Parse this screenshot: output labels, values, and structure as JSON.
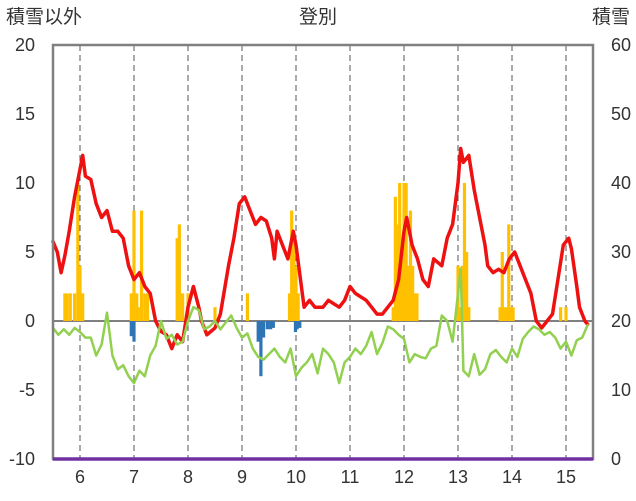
{
  "chart_data": {
    "type": "bar+line",
    "title": "登別",
    "ylabel_left": "積雪以外",
    "ylabel_right": "積雪",
    "ylim_left": [
      -10,
      20
    ],
    "ylim_right": [
      0,
      60
    ],
    "yticks_left": [
      20,
      15,
      10,
      5,
      0,
      -5,
      -10
    ],
    "yticks_right": [
      60,
      50,
      40,
      30,
      20,
      10,
      0
    ],
    "x_range": [
      5.5,
      15.5
    ],
    "xticks": [
      6,
      7,
      8,
      9,
      10,
      11,
      12,
      13,
      14,
      15
    ],
    "grid": "vertical dashed at each year",
    "colors": {
      "red_line": "#ee1111",
      "green_line": "#92d050",
      "orange_bars": "#ffc000",
      "blue_bars": "#2e75b6",
      "bottom_band": "#7030a0",
      "frame": "#808080"
    },
    "series": [
      {
        "axis": "right",
        "kind": "line",
        "color": "red",
        "points": [
          [
            5.5,
            31.5
          ],
          [
            5.58,
            30
          ],
          [
            5.65,
            27
          ],
          [
            5.72,
            29.5
          ],
          [
            5.8,
            33
          ],
          [
            5.9,
            38
          ],
          [
            6.0,
            42
          ],
          [
            6.05,
            44
          ],
          [
            6.1,
            41
          ],
          [
            6.2,
            40.5
          ],
          [
            6.3,
            37
          ],
          [
            6.4,
            35
          ],
          [
            6.5,
            36
          ],
          [
            6.6,
            33
          ],
          [
            6.7,
            33
          ],
          [
            6.8,
            32
          ],
          [
            6.9,
            28
          ],
          [
            7.0,
            26
          ],
          [
            7.1,
            27
          ],
          [
            7.2,
            25
          ],
          [
            7.3,
            24
          ],
          [
            7.4,
            20
          ],
          [
            7.5,
            18.5
          ],
          [
            7.6,
            18
          ],
          [
            7.7,
            16
          ],
          [
            7.8,
            18
          ],
          [
            7.9,
            17
          ],
          [
            8.0,
            22
          ],
          [
            8.1,
            25
          ],
          [
            8.2,
            22
          ],
          [
            8.25,
            20
          ],
          [
            8.35,
            18
          ],
          [
            8.5,
            19
          ],
          [
            8.6,
            21
          ],
          [
            8.75,
            28
          ],
          [
            8.85,
            32
          ],
          [
            8.95,
            37
          ],
          [
            9.05,
            38
          ],
          [
            9.15,
            36
          ],
          [
            9.25,
            34
          ],
          [
            9.35,
            35
          ],
          [
            9.45,
            34.5
          ],
          [
            9.55,
            32
          ],
          [
            9.6,
            29
          ],
          [
            9.65,
            33
          ],
          [
            9.75,
            31
          ],
          [
            9.85,
            29
          ],
          [
            9.95,
            33
          ],
          [
            10.0,
            31
          ],
          [
            10.05,
            28
          ],
          [
            10.15,
            22
          ],
          [
            10.25,
            23
          ],
          [
            10.35,
            22
          ],
          [
            10.5,
            22
          ],
          [
            10.6,
            23
          ],
          [
            10.7,
            22.5
          ],
          [
            10.8,
            22
          ],
          [
            10.9,
            23
          ],
          [
            11.0,
            25
          ],
          [
            11.1,
            24
          ],
          [
            11.2,
            23.5
          ],
          [
            11.3,
            23
          ],
          [
            11.4,
            22
          ],
          [
            11.5,
            21
          ],
          [
            11.6,
            21
          ],
          [
            11.7,
            22
          ],
          [
            11.8,
            23
          ],
          [
            11.9,
            26
          ],
          [
            12.0,
            33
          ],
          [
            12.05,
            35
          ],
          [
            12.15,
            31
          ],
          [
            12.25,
            29
          ],
          [
            12.35,
            26
          ],
          [
            12.45,
            25
          ],
          [
            12.55,
            29
          ],
          [
            12.7,
            28
          ],
          [
            12.8,
            32
          ],
          [
            12.9,
            34
          ],
          [
            13.0,
            40
          ],
          [
            13.05,
            45
          ],
          [
            13.1,
            43
          ],
          [
            13.2,
            44
          ],
          [
            13.3,
            39
          ],
          [
            13.4,
            35
          ],
          [
            13.5,
            31
          ],
          [
            13.55,
            28
          ],
          [
            13.65,
            27
          ],
          [
            13.75,
            27.5
          ],
          [
            13.85,
            27
          ],
          [
            13.95,
            29
          ],
          [
            14.05,
            30
          ],
          [
            14.15,
            28
          ],
          [
            14.25,
            26
          ],
          [
            14.35,
            24
          ],
          [
            14.45,
            20
          ],
          [
            14.55,
            19
          ],
          [
            14.65,
            20
          ],
          [
            14.75,
            21
          ],
          [
            14.85,
            26
          ],
          [
            14.95,
            31
          ],
          [
            15.05,
            32
          ],
          [
            15.1,
            30.5
          ],
          [
            15.2,
            25
          ],
          [
            15.25,
            22
          ],
          [
            15.35,
            20
          ],
          [
            15.4,
            19.5
          ]
        ]
      },
      {
        "axis": "left",
        "kind": "line",
        "color": "green",
        "points": [
          [
            5.5,
            -0.5
          ],
          [
            5.6,
            -1
          ],
          [
            5.7,
            -0.6
          ],
          [
            5.8,
            -1
          ],
          [
            5.9,
            -0.5
          ],
          [
            6.0,
            -0.8
          ],
          [
            6.1,
            -1.2
          ],
          [
            6.2,
            -1.2
          ],
          [
            6.3,
            -2.5
          ],
          [
            6.4,
            -1.7
          ],
          [
            6.5,
            0.6
          ],
          [
            6.6,
            -2.5
          ],
          [
            6.7,
            -3.5
          ],
          [
            6.8,
            -3.2
          ],
          [
            6.9,
            -4
          ],
          [
            7.0,
            -4.5
          ],
          [
            7.1,
            -3.6
          ],
          [
            7.2,
            -4
          ],
          [
            7.3,
            -2.5
          ],
          [
            7.4,
            -1.8
          ],
          [
            7.5,
            0
          ],
          [
            7.6,
            -1.3
          ],
          [
            7.7,
            -1
          ],
          [
            7.8,
            -1.7
          ],
          [
            7.9,
            -1.5
          ],
          [
            8.0,
            0
          ],
          [
            8.1,
            1
          ],
          [
            8.2,
            0.8
          ],
          [
            8.3,
            -0.6
          ],
          [
            8.4,
            -0.4
          ],
          [
            8.5,
            0
          ],
          [
            8.6,
            -0.6
          ],
          [
            8.7,
            -0.1
          ],
          [
            8.8,
            0.4
          ],
          [
            8.9,
            -0.5
          ],
          [
            9.0,
            -1.2
          ],
          [
            9.1,
            -0.9
          ],
          [
            9.2,
            -2
          ],
          [
            9.3,
            -2.6
          ],
          [
            9.4,
            -2.8
          ],
          [
            9.5,
            -2.4
          ],
          [
            9.6,
            -2
          ],
          [
            9.7,
            -2.6
          ],
          [
            9.8,
            -3
          ],
          [
            9.9,
            -2
          ],
          [
            10.0,
            -4
          ],
          [
            10.1,
            -3.4
          ],
          [
            10.2,
            -3
          ],
          [
            10.3,
            -2.4
          ],
          [
            10.4,
            -3.8
          ],
          [
            10.5,
            -2
          ],
          [
            10.6,
            -2.4
          ],
          [
            10.7,
            -3
          ],
          [
            10.8,
            -4.5
          ],
          [
            10.9,
            -3
          ],
          [
            11.0,
            -2.6
          ],
          [
            11.1,
            -2
          ],
          [
            11.2,
            -2.4
          ],
          [
            11.3,
            -1.8
          ],
          [
            11.4,
            -0.8
          ],
          [
            11.5,
            -2.4
          ],
          [
            11.6,
            -1.6
          ],
          [
            11.7,
            -0.4
          ],
          [
            11.8,
            -0.6
          ],
          [
            11.9,
            -1
          ],
          [
            12.0,
            -1.3
          ],
          [
            12.1,
            -3
          ],
          [
            12.2,
            -2.4
          ],
          [
            12.3,
            -2.6
          ],
          [
            12.4,
            -2.7
          ],
          [
            12.5,
            -2
          ],
          [
            12.6,
            -1.8
          ],
          [
            12.7,
            0.4
          ],
          [
            12.8,
            0
          ],
          [
            12.9,
            -1.5
          ],
          [
            13.0,
            2
          ],
          [
            13.05,
            3.8
          ],
          [
            13.1,
            -3.6
          ],
          [
            13.2,
            -4
          ],
          [
            13.3,
            -2.4
          ],
          [
            13.4,
            -3.9
          ],
          [
            13.5,
            -3.5
          ],
          [
            13.6,
            -2.4
          ],
          [
            13.7,
            -2.1
          ],
          [
            13.8,
            -2.6
          ],
          [
            13.9,
            -3
          ],
          [
            14.0,
            -2
          ],
          [
            14.1,
            -2.6
          ],
          [
            14.2,
            -1.3
          ],
          [
            14.3,
            -0.8
          ],
          [
            14.4,
            -0.4
          ],
          [
            14.5,
            -0.6
          ],
          [
            14.6,
            -1
          ],
          [
            14.7,
            -0.8
          ],
          [
            14.8,
            -1.2
          ],
          [
            14.9,
            -2
          ],
          [
            15.0,
            -1.5
          ],
          [
            15.1,
            -2.5
          ],
          [
            15.2,
            -1.4
          ],
          [
            15.3,
            -1.2
          ],
          [
            15.4,
            -0.3
          ]
        ]
      },
      {
        "axis": "left",
        "kind": "bars",
        "color": "orange",
        "points": [
          [
            5.72,
            2
          ],
          [
            5.76,
            2
          ],
          [
            5.82,
            2
          ],
          [
            5.9,
            2
          ],
          [
            5.96,
            10
          ],
          [
            6.0,
            4
          ],
          [
            6.05,
            2
          ],
          [
            6.95,
            2
          ],
          [
            7.0,
            8
          ],
          [
            7.05,
            2
          ],
          [
            7.1,
            1
          ],
          [
            7.14,
            8
          ],
          [
            7.2,
            2
          ],
          [
            7.25,
            2
          ],
          [
            7.8,
            6
          ],
          [
            7.84,
            7
          ],
          [
            7.9,
            2
          ],
          [
            8.0,
            2
          ],
          [
            8.5,
            1
          ],
          [
            9.1,
            2
          ],
          [
            9.88,
            2
          ],
          [
            9.92,
            8
          ],
          [
            9.96,
            6
          ],
          [
            10.0,
            4
          ],
          [
            10.04,
            2
          ],
          [
            11.8,
            1
          ],
          [
            11.84,
            9
          ],
          [
            11.88,
            7
          ],
          [
            11.92,
            10
          ],
          [
            11.96,
            6
          ],
          [
            12.0,
            10
          ],
          [
            12.04,
            10
          ],
          [
            12.08,
            4
          ],
          [
            12.12,
            8
          ],
          [
            12.16,
            4
          ],
          [
            12.2,
            2
          ],
          [
            12.24,
            2
          ],
          [
            13.0,
            4
          ],
          [
            13.04,
            1
          ],
          [
            13.08,
            4
          ],
          [
            13.12,
            10
          ],
          [
            13.16,
            5
          ],
          [
            13.2,
            1
          ],
          [
            13.78,
            1
          ],
          [
            13.82,
            5
          ],
          [
            13.86,
            1
          ],
          [
            13.9,
            1
          ],
          [
            13.94,
            7
          ],
          [
            13.98,
            1
          ],
          [
            14.02,
            1
          ],
          [
            14.9,
            1
          ],
          [
            15.0,
            1
          ]
        ]
      },
      {
        "axis": "left",
        "kind": "bars",
        "color": "blue",
        "points": [
          [
            6.95,
            -1.1
          ],
          [
            7.0,
            -1.5
          ],
          [
            9.3,
            -1.5
          ],
          [
            9.35,
            -4
          ],
          [
            9.4,
            -1.2
          ],
          [
            9.47,
            -0.6
          ],
          [
            9.53,
            -0.6
          ],
          [
            9.58,
            -0.5
          ],
          [
            9.99,
            -0.8
          ],
          [
            10.02,
            -0.6
          ],
          [
            10.07,
            -0.5
          ]
        ]
      }
    ]
  }
}
